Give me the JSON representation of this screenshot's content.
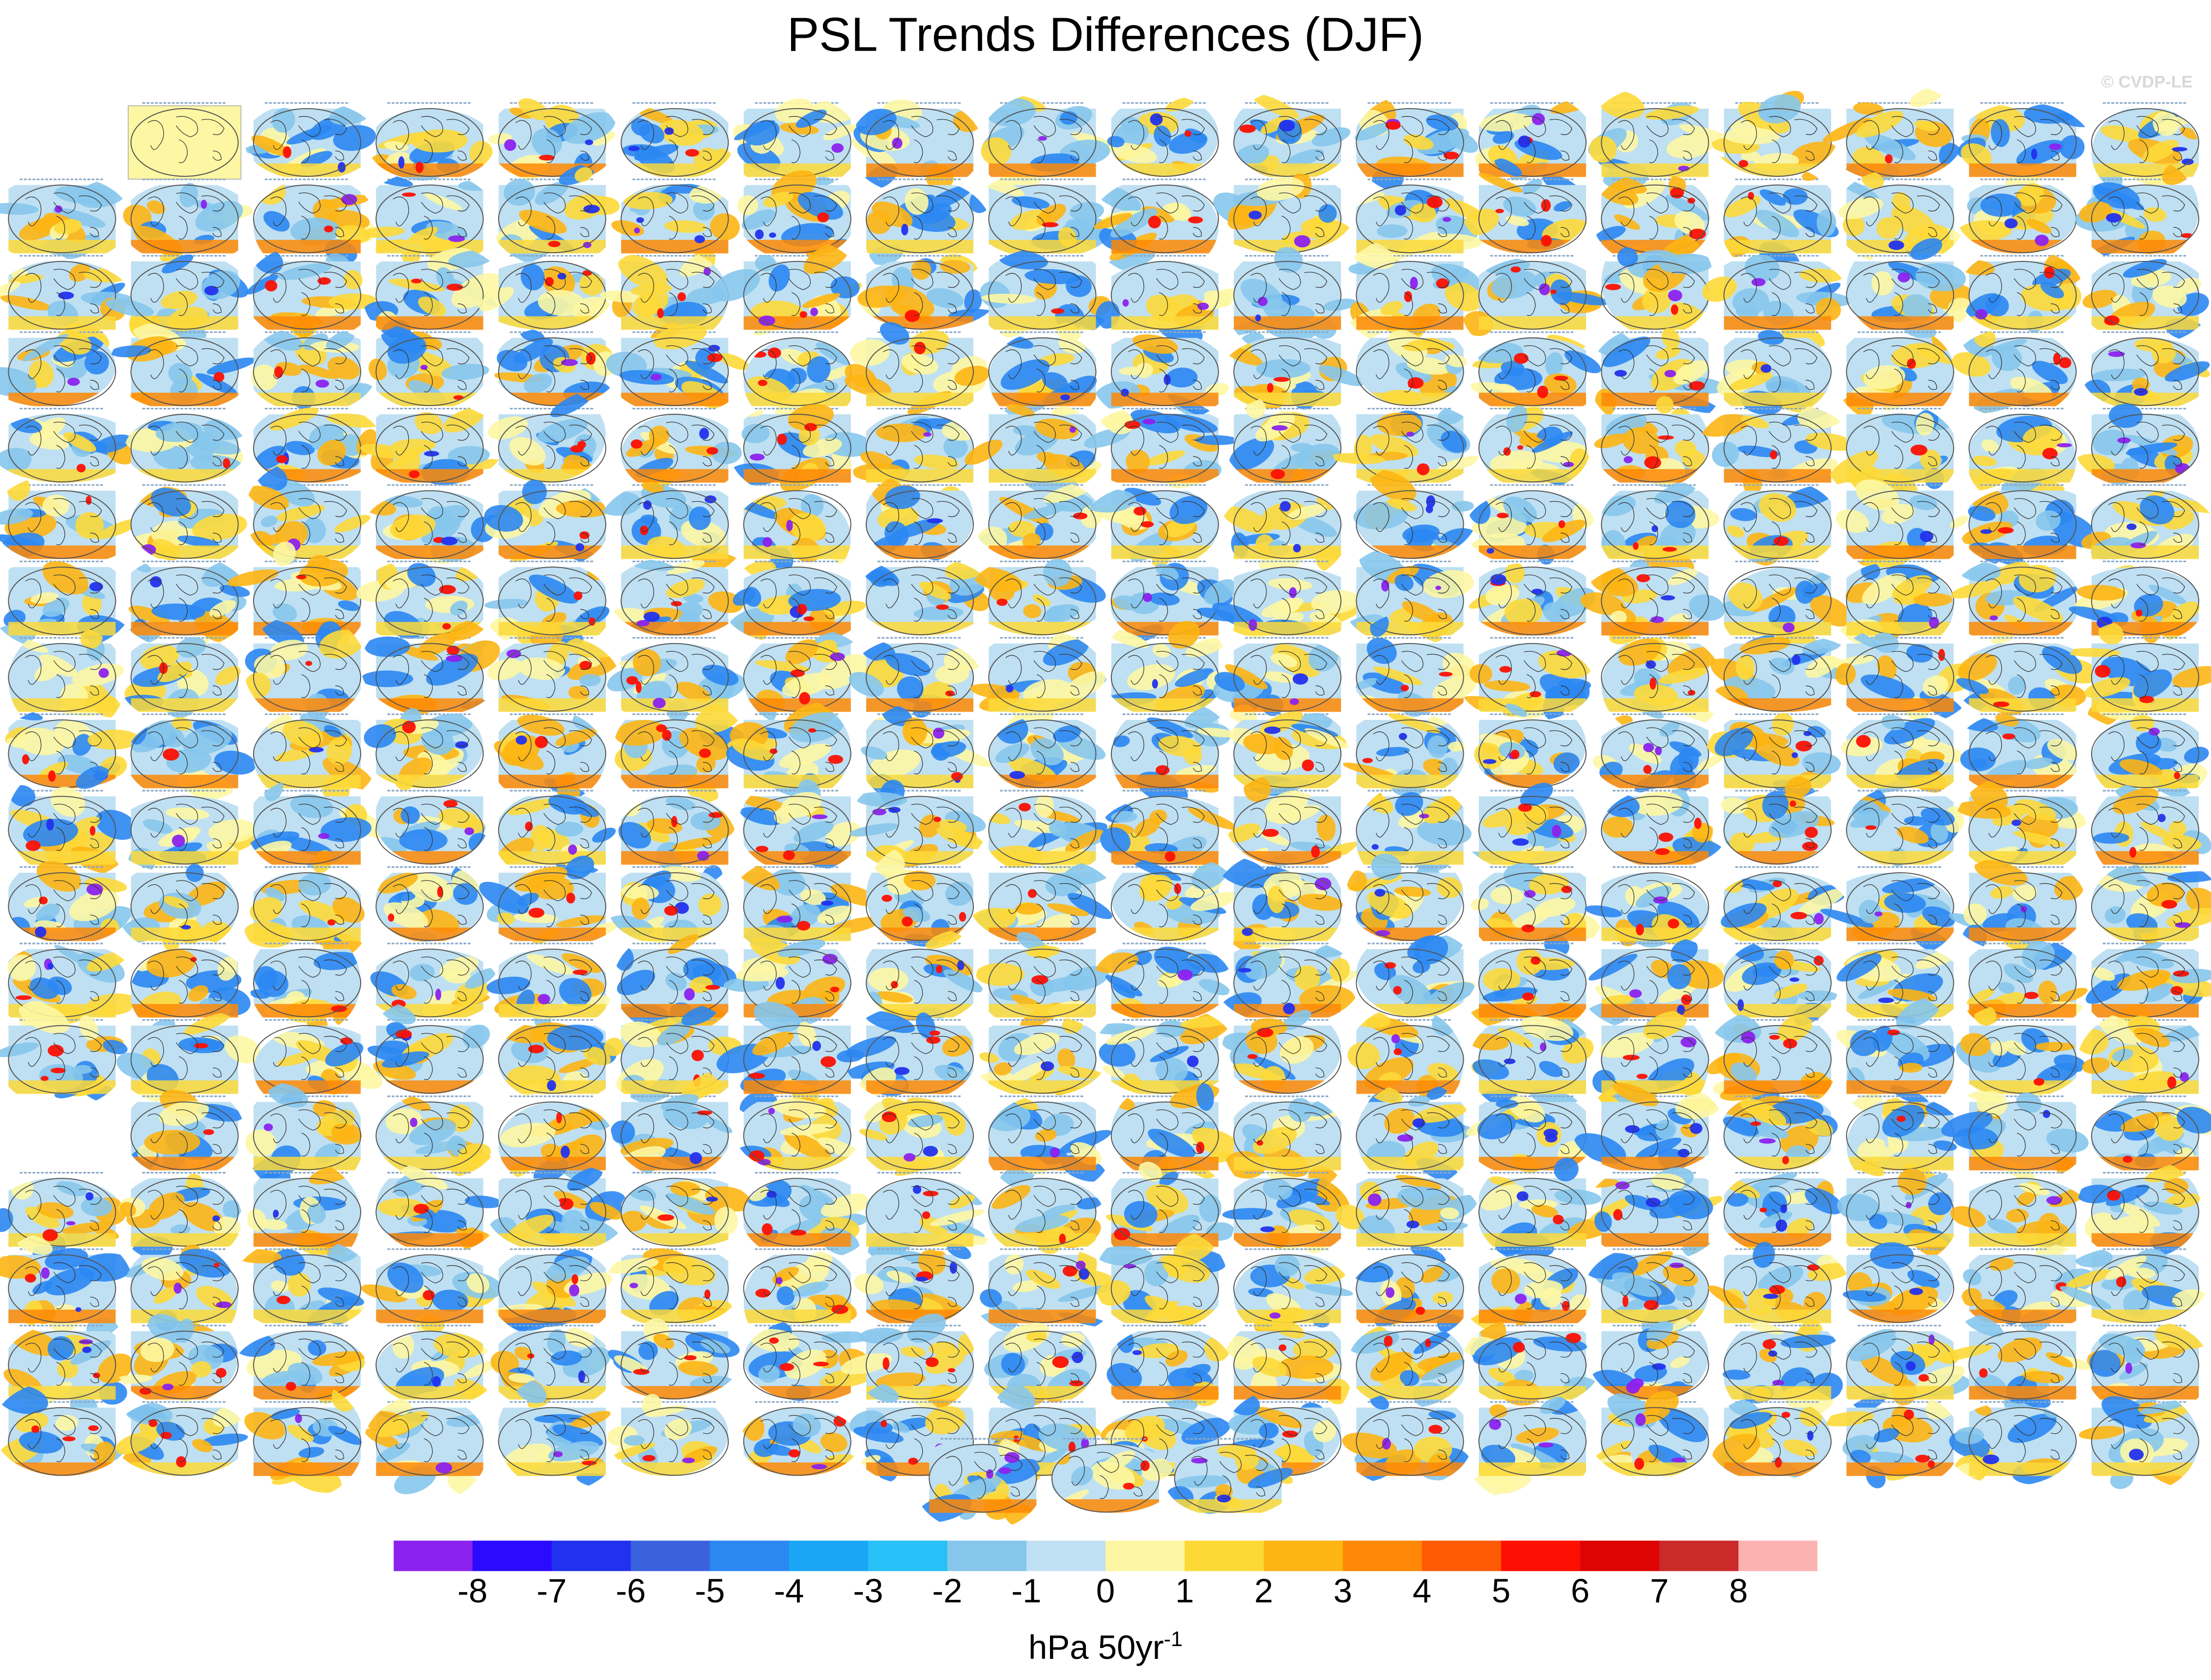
{
  "chart_data": {
    "type": "heatmap",
    "title": "PSL Trends Differences (DJF)",
    "credit": "© CVDP-LE",
    "units": {
      "text": "hPa 50yr",
      "superscript": "-1"
    },
    "grid": {
      "rows": 18,
      "columns": 18,
      "extra_row_panels": 3
    },
    "empty_cells": [
      [
        0,
        0
      ],
      [
        13,
        0
      ]
    ],
    "highlighted_cells": [
      [
        0,
        1
      ]
    ],
    "colorbar": {
      "colors": [
        "#8b22ee",
        "#2a0bff",
        "#2231ee",
        "#3b62de",
        "#2b87f2",
        "#1aa5f5",
        "#27c0f7",
        "#86c6ec",
        "#bfe0f2",
        "#fdf7a3",
        "#fdd938",
        "#fdb513",
        "#fe8805",
        "#fe5a04",
        "#fd1003",
        "#de0404",
        "#cb2a2a",
        "#fdb2b2"
      ],
      "tick_labels": [
        "-8",
        "-7",
        "-6",
        "-5",
        "-4",
        "-3",
        "-2",
        "-1",
        "0",
        "1",
        "2",
        "3",
        "4",
        "5",
        "6",
        "7",
        "8"
      ]
    },
    "map_palette": {
      "ocean_base": "#bfe0f2",
      "light_blue": "#86c6ec",
      "mid_blue": "#2b87f2",
      "deep_blue": "#2231ee",
      "violet": "#8b22ee",
      "pale_yellow": "#fdf7a3",
      "yellow": "#fdd938",
      "orange": "#fdb513",
      "dark_orange": "#fe8805",
      "red": "#fd1003",
      "outline": "#555555",
      "coast": "#333333",
      "highlight": "#fdf7a3"
    }
  }
}
